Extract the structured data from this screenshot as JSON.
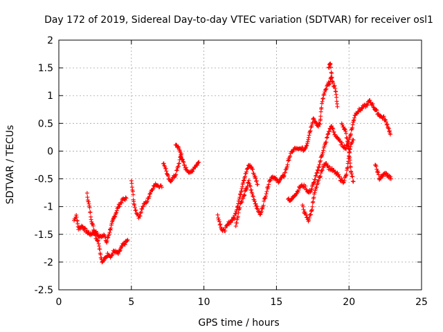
{
  "chart_data": {
    "type": "scatter",
    "title": "Day 172 of 2019, Sidereal Day-to-day VTEC variation (SDTVAR) for receiver osl1",
    "xlabel": "GPS time / hours",
    "ylabel": "SDTVAR / TECUs",
    "xlim": [
      0,
      25
    ],
    "ylim": [
      -2.5,
      2
    ],
    "x_ticks": [
      "0",
      "5",
      "10",
      "15",
      "20",
      "25"
    ],
    "y_ticks": [
      "2",
      "1.5",
      "1",
      "0.5",
      "0",
      "-0.5",
      "-1",
      "-1.5",
      "-2",
      "-2.5"
    ],
    "grid": true,
    "marker": "+",
    "series_color": "#ff0000",
    "segments": [
      [
        [
          1.05,
          -1.25
        ],
        [
          1.2,
          -1.15
        ],
        [
          1.35,
          -1.4
        ],
        [
          1.6,
          -1.35
        ],
        [
          1.9,
          -1.45
        ],
        [
          2.2,
          -1.5
        ],
        [
          2.5,
          -1.45
        ],
        [
          2.8,
          -1.55
        ],
        [
          3.1,
          -1.5
        ],
        [
          3.3,
          -1.65
        ],
        [
          3.5,
          -1.45
        ],
        [
          3.8,
          -1.2
        ],
        [
          4.1,
          -1.0
        ],
        [
          4.4,
          -0.88
        ],
        [
          4.65,
          -0.85
        ]
      ],
      [
        [
          1.95,
          -0.78
        ],
        [
          2.1,
          -1.0
        ],
        [
          2.25,
          -1.25
        ],
        [
          2.4,
          -1.4
        ],
        [
          2.55,
          -1.55
        ],
        [
          2.75,
          -1.65
        ],
        [
          2.9,
          -1.9
        ],
        [
          3.0,
          -2.0
        ],
        [
          3.15,
          -1.95
        ],
        [
          3.4,
          -1.85
        ],
        [
          3.6,
          -1.9
        ],
        [
          3.8,
          -1.8
        ],
        [
          4.1,
          -1.85
        ],
        [
          4.4,
          -1.7
        ],
        [
          4.6,
          -1.65
        ],
        [
          4.75,
          -1.6
        ]
      ],
      [
        [
          5.0,
          -0.55
        ],
        [
          5.1,
          -0.75
        ],
        [
          5.2,
          -1.0
        ],
        [
          5.35,
          -1.1
        ],
        [
          5.55,
          -1.2
        ],
        [
          5.7,
          -1.05
        ],
        [
          5.9,
          -0.95
        ],
        [
          6.1,
          -0.9
        ],
        [
          6.3,
          -0.75
        ],
        [
          6.5,
          -0.65
        ],
        [
          6.7,
          -0.6
        ],
        [
          6.9,
          -0.62
        ],
        [
          7.1,
          -0.65
        ]
      ],
      [
        [
          7.2,
          -0.2
        ],
        [
          7.35,
          -0.3
        ],
        [
          7.5,
          -0.45
        ],
        [
          7.65,
          -0.55
        ],
        [
          7.8,
          -0.5
        ],
        [
          8.0,
          -0.45
        ],
        [
          8.15,
          -0.35
        ],
        [
          8.3,
          -0.2
        ],
        [
          8.45,
          -0.05
        ]
      ],
      [
        [
          8.05,
          0.12
        ],
        [
          8.2,
          0.08
        ],
        [
          8.35,
          0.0
        ],
        [
          8.5,
          -0.15
        ],
        [
          8.7,
          -0.3
        ],
        [
          8.9,
          -0.35
        ],
        [
          9.1,
          -0.4
        ],
        [
          9.3,
          -0.3
        ],
        [
          9.5,
          -0.25
        ],
        [
          9.65,
          -0.2
        ]
      ],
      [
        [
          10.95,
          -1.15
        ],
        [
          11.1,
          -1.3
        ],
        [
          11.3,
          -1.45
        ],
        [
          11.5,
          -1.4
        ],
        [
          11.7,
          -1.3
        ],
        [
          11.9,
          -1.25
        ],
        [
          12.1,
          -1.2
        ],
        [
          12.3,
          -1.0
        ],
        [
          12.5,
          -0.8
        ],
        [
          12.7,
          -0.55
        ],
        [
          12.9,
          -0.4
        ],
        [
          13.1,
          -0.25
        ],
        [
          13.3,
          -0.3
        ],
        [
          13.5,
          -0.45
        ],
        [
          13.7,
          -0.6
        ]
      ],
      [
        [
          12.2,
          -1.35
        ],
        [
          12.35,
          -1.15
        ],
        [
          12.5,
          -0.95
        ],
        [
          12.7,
          -0.85
        ],
        [
          12.9,
          -0.7
        ],
        [
          13.1,
          -0.55
        ],
        [
          13.3,
          -0.75
        ],
        [
          13.5,
          -0.9
        ],
        [
          13.7,
          -1.05
        ],
        [
          13.9,
          -1.15
        ],
        [
          14.1,
          -0.95
        ],
        [
          14.3,
          -0.75
        ],
        [
          14.5,
          -0.55
        ],
        [
          14.7,
          -0.45
        ],
        [
          14.9,
          -0.5
        ],
        [
          15.1,
          -0.55
        ],
        [
          15.3,
          -0.5
        ],
        [
          15.5,
          -0.45
        ]
      ],
      [
        [
          15.5,
          -0.45
        ],
        [
          15.7,
          -0.3
        ],
        [
          15.9,
          -0.1
        ],
        [
          16.1,
          0.0
        ],
        [
          16.3,
          0.05
        ],
        [
          16.5,
          0.02
        ],
        [
          16.7,
          0.05
        ],
        [
          16.9,
          0.02
        ],
        [
          17.1,
          0.12
        ],
        [
          17.25,
          0.3
        ],
        [
          17.4,
          0.45
        ],
        [
          17.55,
          0.6
        ],
        [
          17.7,
          0.5
        ],
        [
          17.85,
          0.45
        ],
        [
          18.0,
          0.5
        ],
        [
          18.1,
          0.8
        ],
        [
          18.25,
          1.0
        ],
        [
          18.4,
          1.1
        ],
        [
          18.55,
          1.2
        ],
        [
          18.7,
          1.25
        ],
        [
          18.8,
          1.35
        ],
        [
          18.9,
          1.2
        ],
        [
          19.05,
          1.15
        ],
        [
          19.2,
          0.8
        ]
      ],
      [
        [
          18.6,
          1.5
        ],
        [
          18.7,
          1.6
        ],
        [
          18.8,
          1.4
        ]
      ],
      [
        [
          15.8,
          -0.85
        ],
        [
          16.0,
          -0.9
        ],
        [
          16.2,
          -0.8
        ],
        [
          16.4,
          -0.75
        ],
        [
          16.6,
          -0.65
        ],
        [
          16.8,
          -0.62
        ],
        [
          17.0,
          -0.65
        ],
        [
          17.2,
          -0.75
        ],
        [
          17.4,
          -0.7
        ],
        [
          17.6,
          -0.55
        ],
        [
          17.8,
          -0.4
        ],
        [
          18.0,
          -0.2
        ],
        [
          18.2,
          0.0
        ],
        [
          18.4,
          0.15
        ],
        [
          18.6,
          0.35
        ],
        [
          18.8,
          0.45
        ],
        [
          19.0,
          0.3
        ],
        [
          19.2,
          0.25
        ],
        [
          19.4,
          0.15
        ],
        [
          19.6,
          0.1
        ],
        [
          19.8,
          0.05
        ],
        [
          20.0,
          0.2
        ],
        [
          20.2,
          0.4
        ],
        [
          20.4,
          0.65
        ],
        [
          20.6,
          0.72
        ],
        [
          20.8,
          0.75
        ],
        [
          21.0,
          0.8
        ],
        [
          21.2,
          0.82
        ],
        [
          21.4,
          0.9
        ],
        [
          21.6,
          0.85
        ],
        [
          21.8,
          0.75
        ],
        [
          22.0,
          0.68
        ],
        [
          22.2,
          0.62
        ],
        [
          22.4,
          0.6
        ],
        [
          22.6,
          0.5
        ],
        [
          22.75,
          0.4
        ],
        [
          22.85,
          0.3
        ]
      ],
      [
        [
          16.8,
          -1.0
        ],
        [
          17.0,
          -1.15
        ],
        [
          17.2,
          -1.25
        ],
        [
          17.4,
          -1.1
        ],
        [
          17.6,
          -0.8
        ],
        [
          17.8,
          -0.6
        ],
        [
          18.0,
          -0.45
        ],
        [
          18.2,
          -0.3
        ],
        [
          18.4,
          -0.2
        ],
        [
          18.6,
          -0.3
        ],
        [
          18.8,
          -0.33
        ],
        [
          19.0,
          -0.38
        ],
        [
          19.2,
          -0.42
        ],
        [
          19.4,
          -0.5
        ],
        [
          19.6,
          -0.55
        ],
        [
          19.8,
          -0.45
        ],
        [
          19.95,
          -0.2
        ],
        [
          20.1,
          0.1
        ],
        [
          20.3,
          0.2
        ]
      ],
      [
        [
          19.5,
          0.5
        ],
        [
          19.7,
          0.4
        ],
        [
          19.9,
          0.2
        ],
        [
          20.05,
          -0.1
        ],
        [
          20.15,
          -0.4
        ],
        [
          20.3,
          -0.55
        ]
      ],
      [
        [
          21.8,
          -0.25
        ],
        [
          21.95,
          -0.35
        ],
        [
          22.1,
          -0.5
        ],
        [
          22.3,
          -0.45
        ],
        [
          22.5,
          -0.4
        ],
        [
          22.7,
          -0.45
        ],
        [
          22.9,
          -0.5
        ]
      ]
    ]
  }
}
